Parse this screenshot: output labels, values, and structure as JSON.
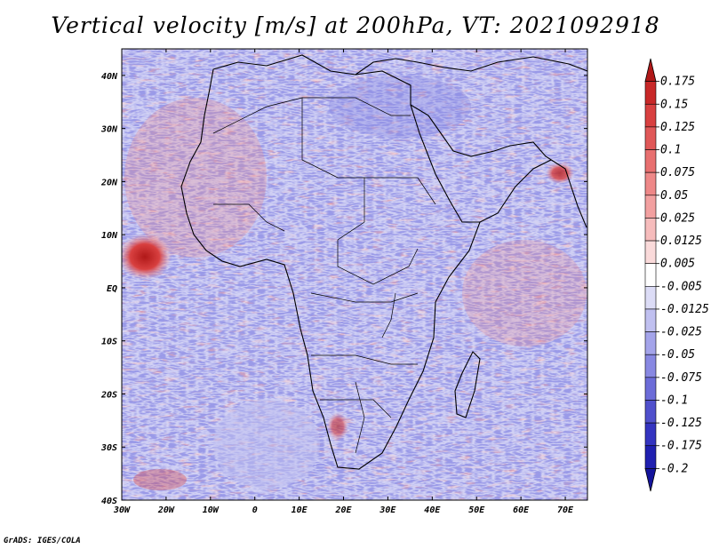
{
  "title": "Vertical velocity [m/s] at 200hPa, VT: 2021092918",
  "credit": "GrADS: IGES/COLA",
  "map": {
    "longitude_ticks": [
      "30W",
      "20W",
      "10W",
      "0",
      "10E",
      "20E",
      "30E",
      "40E",
      "50E",
      "60E",
      "70E"
    ],
    "latitude_ticks": [
      "40N",
      "30N",
      "20N",
      "10N",
      "EQ",
      "10S",
      "20S",
      "30S",
      "40S"
    ]
  },
  "colorbar": {
    "labels": [
      "0.175",
      "0.15",
      "0.125",
      "0.1",
      "0.075",
      "0.05",
      "0.025",
      "0.0125",
      "0.005",
      "-0.005",
      "-0.0125",
      "-0.025",
      "-0.05",
      "-0.075",
      "-0.1",
      "-0.125",
      "-0.175",
      "-0.2"
    ],
    "colors": [
      "#b01818",
      "#c82828",
      "#d84040",
      "#e05858",
      "#e87070",
      "#ee8888",
      "#f2a0a0",
      "#f6bcbc",
      "#fadada",
      "#ffffff",
      "#dcdcf6",
      "#c0c0f0",
      "#a4a4ea",
      "#8888e2",
      "#6c6cd8",
      "#5050cc",
      "#3434c0",
      "#2020b0",
      "#14149c"
    ]
  },
  "chart_data": {
    "type": "heatmap",
    "title": "Vertical velocity [m/s] at 200hPa, VT: 2021092918",
    "variable": "Vertical velocity",
    "units": "m/s",
    "level": "200hPa",
    "valid_time": "2021092918",
    "xlim": [
      -30,
      75
    ],
    "ylim": [
      -40,
      45
    ],
    "x_ticks": [
      "30W",
      "20W",
      "10W",
      "0",
      "10E",
      "20E",
      "30E",
      "40E",
      "50E",
      "60E",
      "70E"
    ],
    "y_ticks": [
      "40N",
      "30N",
      "20N",
      "10N",
      "EQ",
      "10S",
      "20S",
      "30S",
      "40S"
    ],
    "color_levels": [
      -0.2,
      -0.175,
      -0.125,
      -0.1,
      -0.075,
      -0.05,
      -0.025,
      -0.0125,
      -0.005,
      0.005,
      0.0125,
      0.025,
      0.05,
      0.075,
      0.1,
      0.125,
      0.15,
      0.175
    ],
    "notable_features": [
      {
        "lon": -28,
        "lat": 7,
        "sign": "positive",
        "strength": "strong"
      },
      {
        "lon": 66,
        "lat": 21,
        "sign": "positive",
        "strength": "moderate"
      },
      {
        "lon": 20,
        "lat": -28,
        "sign": "positive",
        "strength": "moderate"
      },
      {
        "lon": -12,
        "lat": -33,
        "sign": "negative",
        "strength": "moderate"
      }
    ]
  }
}
